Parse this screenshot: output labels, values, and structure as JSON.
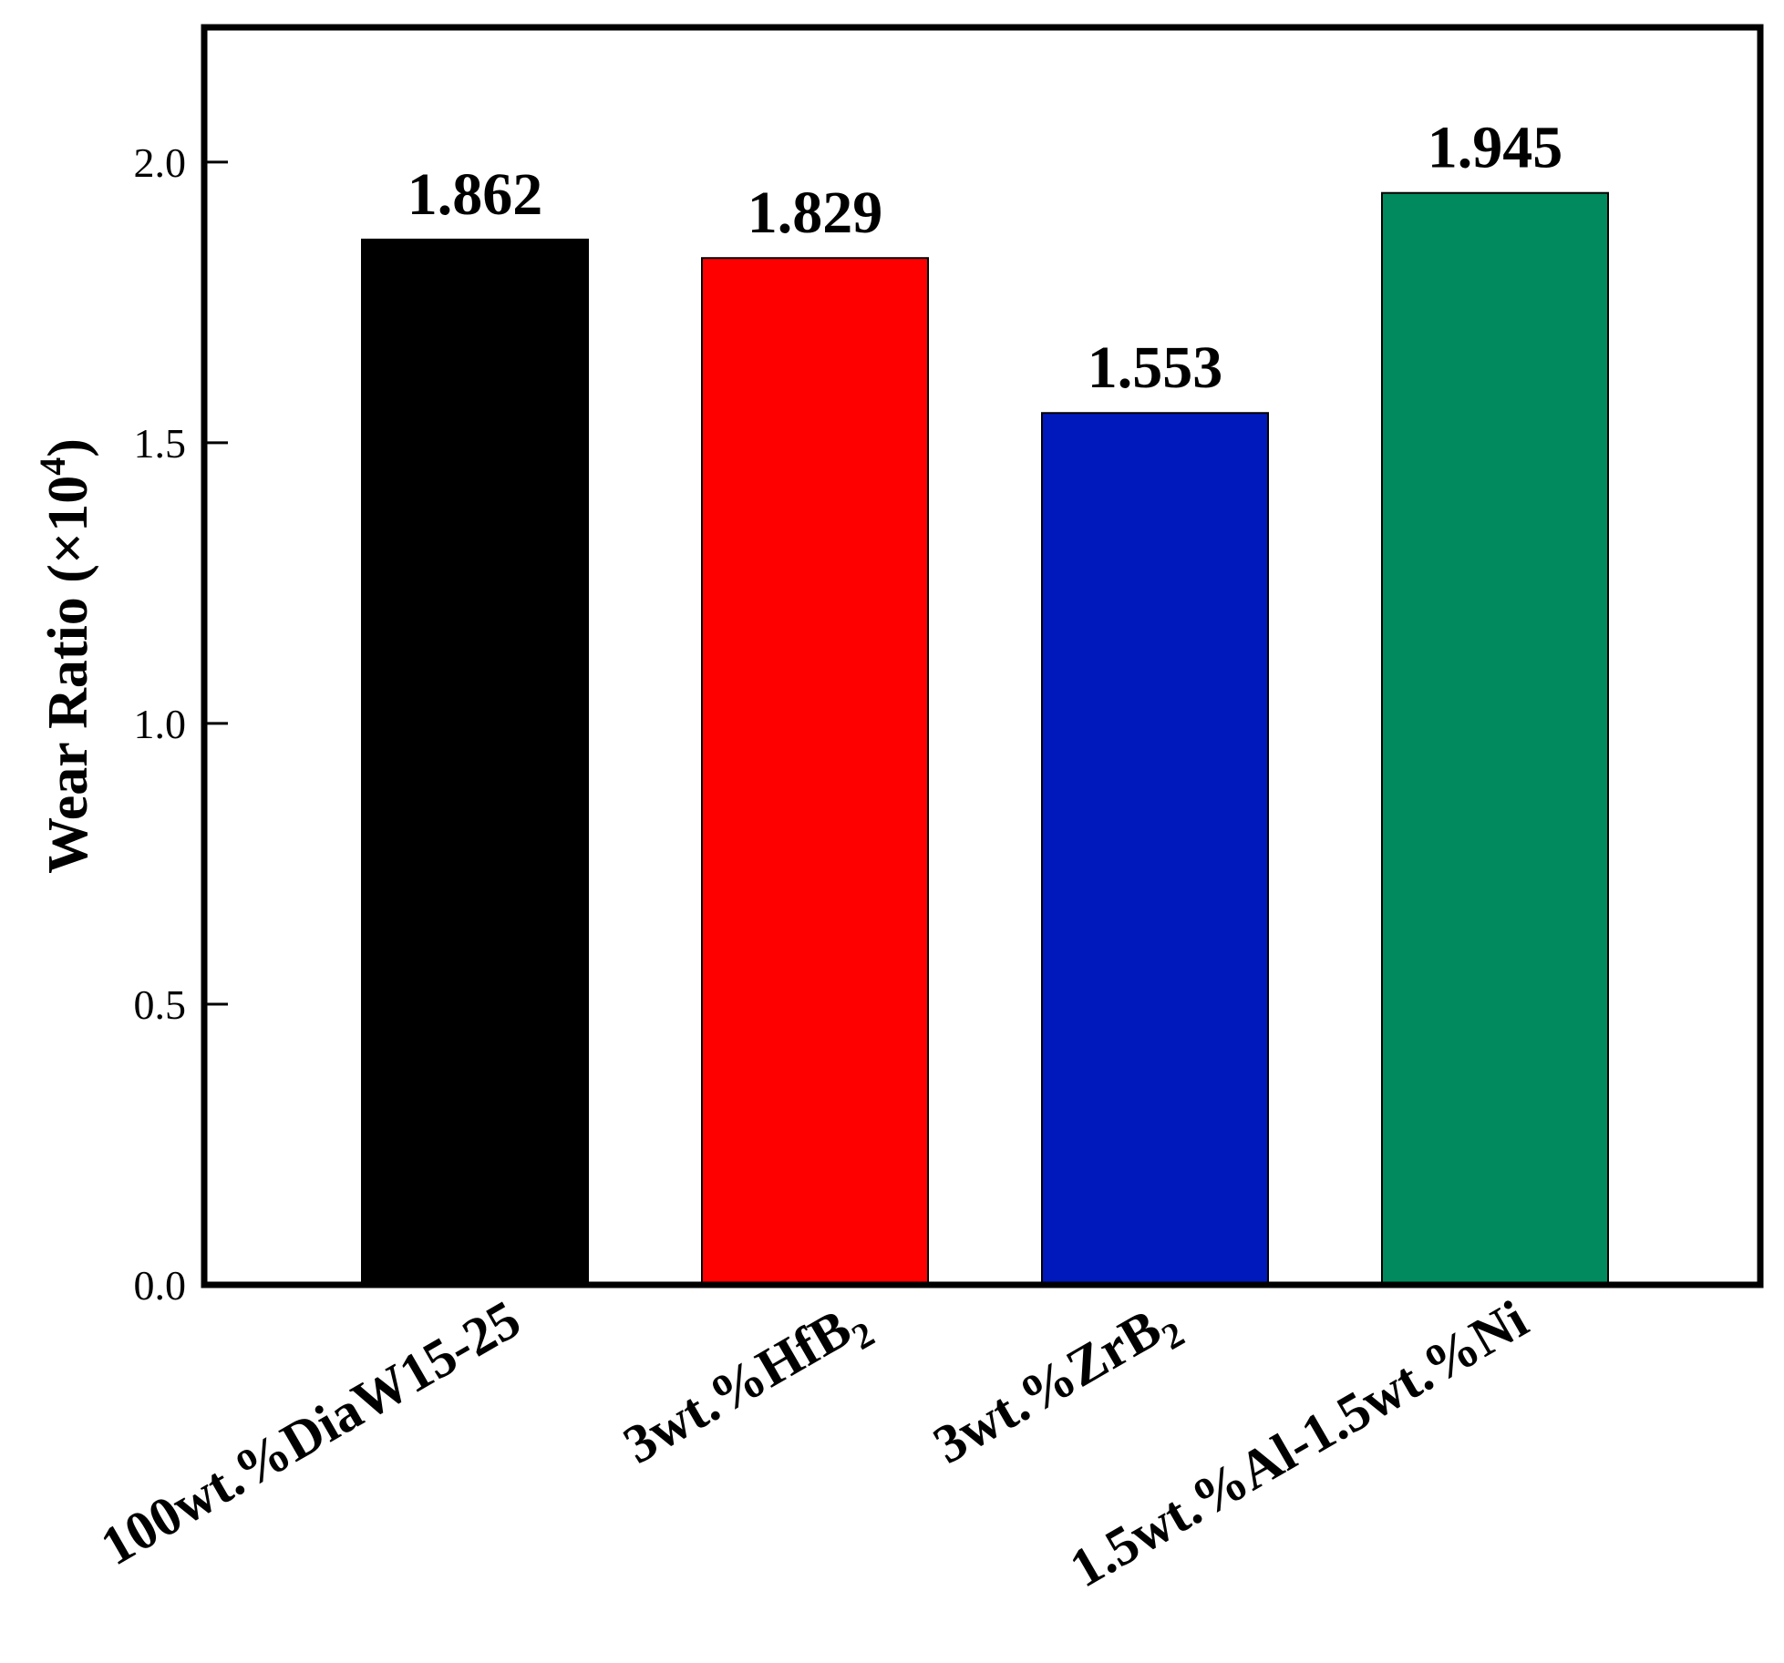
{
  "chart_data": {
    "type": "bar",
    "categories": [
      {
        "text": "100wt.%DiaW15-25",
        "sub": ""
      },
      {
        "text": "3wt.%HfB",
        "sub": "2"
      },
      {
        "text": "3wt.%ZrB",
        "sub": "2"
      },
      {
        "text": "1.5wt.%Al-1.5wt.%Ni",
        "sub": ""
      }
    ],
    "values": [
      1.862,
      1.829,
      1.553,
      1.945
    ],
    "value_labels": [
      "1.862",
      "1.829",
      "1.553",
      "1.945"
    ],
    "colors": [
      "#000000",
      "#ff0000",
      "#0019bd",
      "#008a5e"
    ],
    "ylabel": "Wear Ratio (×10",
    "ylabel_sup": "4",
    "ylabel_close": ")",
    "ylim": [
      0,
      2.24
    ],
    "yticks": [
      0.0,
      0.5,
      1.0,
      1.5,
      2.0
    ],
    "ytick_labels": [
      "0.0",
      "0.5",
      "1.0",
      "1.5",
      "2.0"
    ],
    "grid": false,
    "legend": "none"
  }
}
